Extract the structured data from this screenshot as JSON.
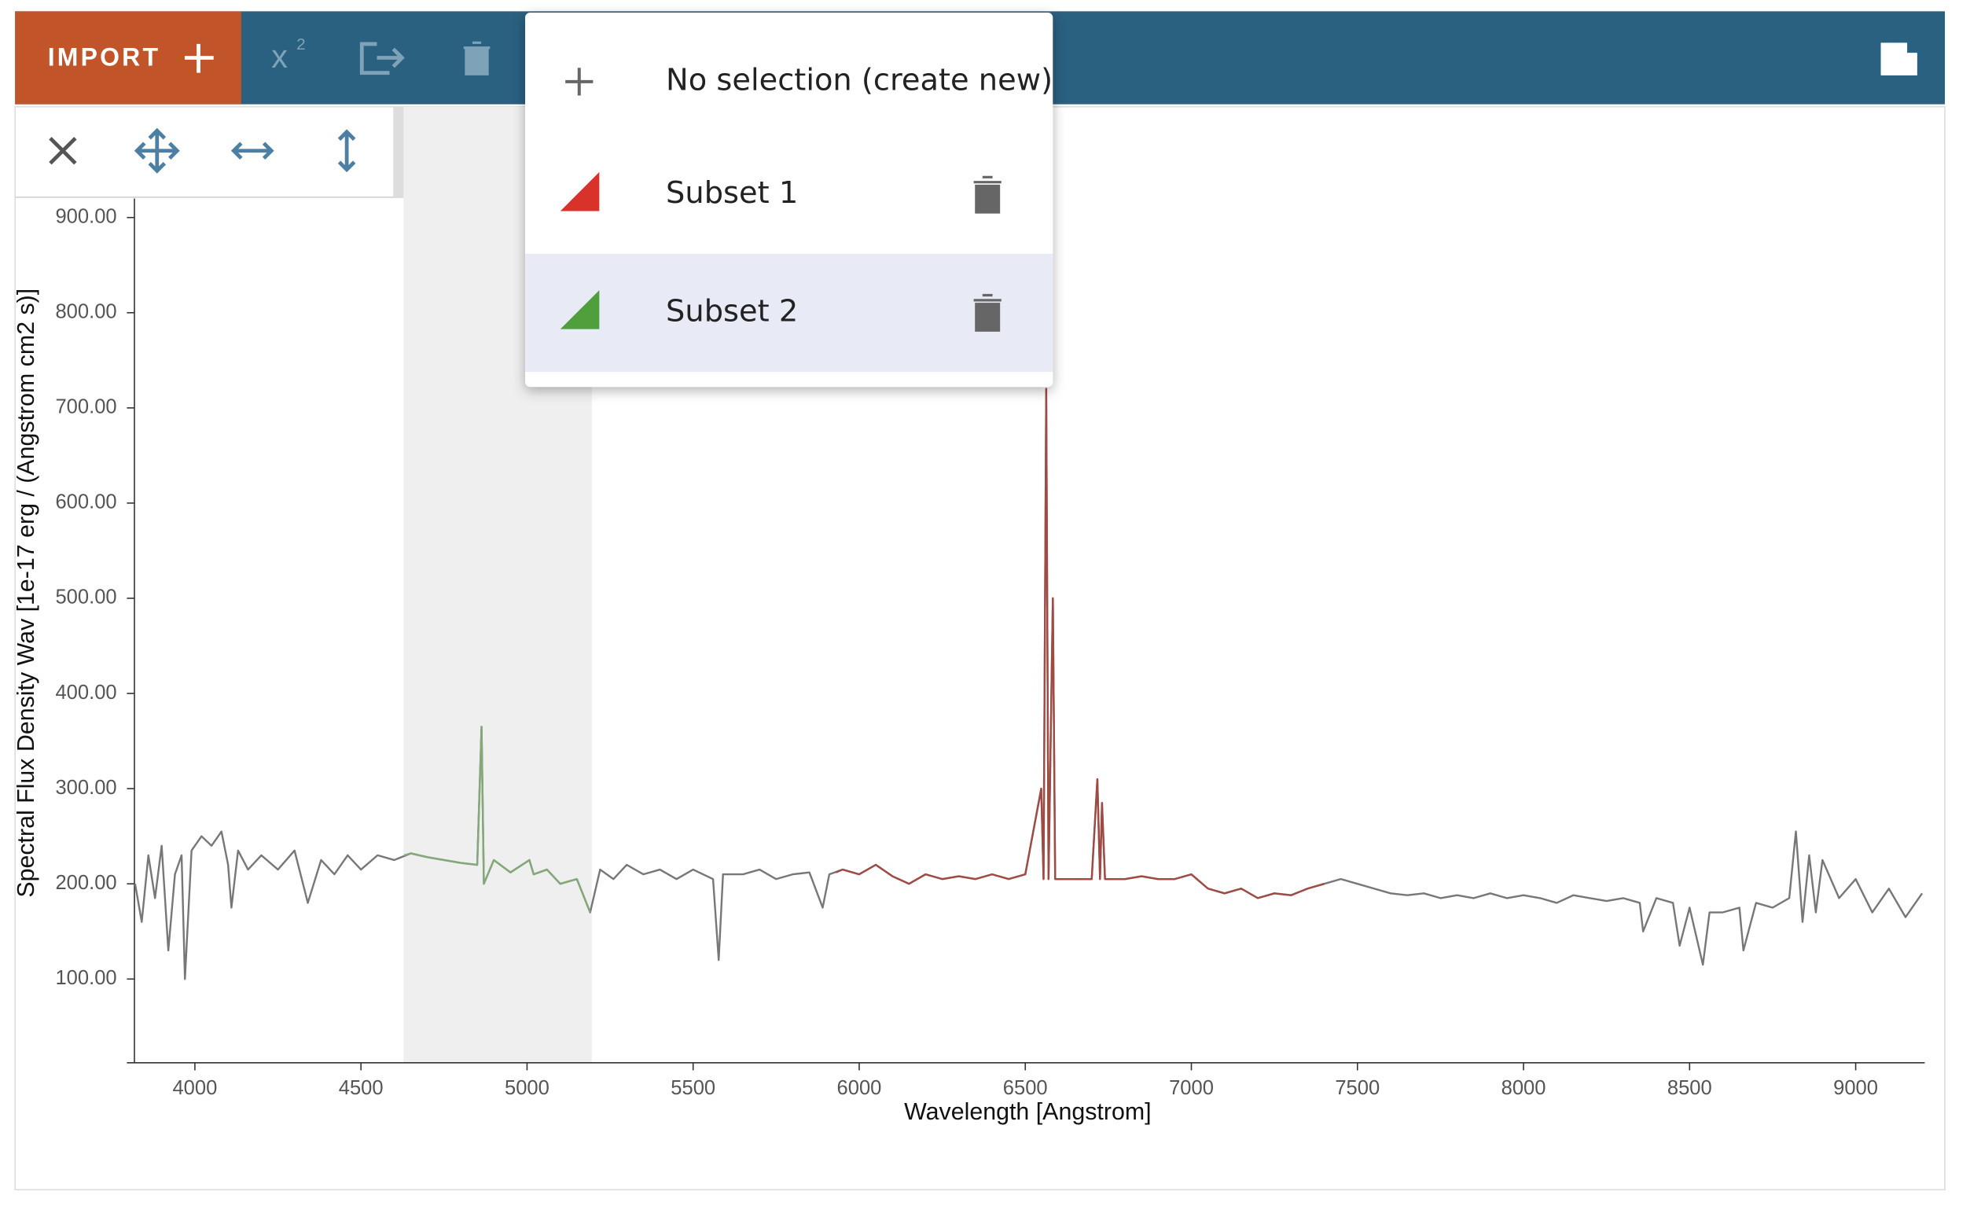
{
  "toolbar": {
    "import_label": "IMPORT",
    "fit_icon_label": "x",
    "fit_icon_exponent": "2"
  },
  "subset_menu": {
    "items": [
      {
        "label": "No selection (create new)"
      },
      {
        "label": "Subset 1",
        "color": "#d9322b"
      },
      {
        "label": "Subset 2",
        "color": "#4f9f3d",
        "selected": true
      }
    ]
  },
  "chart_data": {
    "type": "line",
    "x_label": "Wavelength [Angstrom]",
    "y_label": "Spectral Flux Density Wav [1e-17 erg / (Angstrom cm2 s)]",
    "xlim": [
      3818,
      9208
    ],
    "ylim": [
      12,
      920
    ],
    "xticks": [
      4000,
      4500,
      5000,
      5500,
      6000,
      6500,
      7000,
      7500,
      8000,
      8500,
      9000
    ],
    "yticks": [
      {
        "value": 100,
        "label": "100.00"
      },
      {
        "value": 200,
        "label": "200.00"
      },
      {
        "value": 300,
        "label": "300.00"
      },
      {
        "value": 400,
        "label": "400.00"
      },
      {
        "value": 500,
        "label": "500.00"
      },
      {
        "value": 600,
        "label": "600.00"
      },
      {
        "value": 700,
        "label": "700.00"
      },
      {
        "value": 800,
        "label": "800.00"
      },
      {
        "value": 900,
        "label": "900.00"
      }
    ],
    "spectral_region": [
      4628,
      5195
    ],
    "series": [
      {
        "color": "#777777",
        "x": [
          3820,
          3840,
          3860,
          3880,
          3900,
          3920,
          3940,
          3960,
          3970,
          3990,
          4020,
          4050,
          4080,
          4100,
          4110,
          4130,
          4160,
          4200,
          4250,
          4300,
          4340,
          4380,
          4420,
          4460,
          4500,
          4550,
          4600,
          4650,
          4700,
          4750,
          4800,
          4850,
          4863,
          4870,
          4900,
          4950,
          5007,
          5020,
          5060,
          5100,
          5150,
          5190,
          5220,
          5260,
          5300,
          5350,
          5400,
          5450,
          5500,
          5560,
          5577,
          5590,
          5650,
          5700,
          5750,
          5800,
          5850,
          5890,
          5910,
          5950,
          6000,
          6050,
          6100,
          6150,
          6200,
          6250,
          6300,
          6350,
          6400,
          6450,
          6500,
          6548,
          6555,
          6563,
          6570,
          6583,
          6590,
          6650,
          6700,
          6717,
          6725,
          6731,
          6740,
          6800,
          6850,
          6900,
          6950,
          7000,
          7050,
          7100,
          7150,
          7200,
          7250,
          7300,
          7350,
          7400,
          7450,
          7500,
          7550,
          7600,
          7650,
          7700,
          7750,
          7800,
          7850,
          7900,
          7950,
          8000,
          8050,
          8100,
          8150,
          8200,
          8250,
          8300,
          8350,
          8360,
          8400,
          8450,
          8470,
          8500,
          8540,
          8560,
          8600,
          8650,
          8662,
          8700,
          8750,
          8800,
          8820,
          8840,
          8860,
          8880,
          8900,
          8950,
          9000,
          9050,
          9100,
          9150,
          9200
        ],
        "values": [
          200,
          160,
          230,
          185,
          240,
          130,
          210,
          230,
          100,
          235,
          250,
          240,
          255,
          220,
          175,
          235,
          215,
          230,
          215,
          235,
          180,
          225,
          210,
          230,
          215,
          230,
          225,
          232,
          228,
          225,
          222,
          220,
          365,
          200,
          225,
          212,
          225,
          210,
          215,
          200,
          205,
          170,
          215,
          205,
          220,
          210,
          215,
          205,
          215,
          205,
          120,
          210,
          210,
          215,
          205,
          210,
          212,
          175,
          210,
          215,
          210,
          220,
          208,
          200,
          210,
          205,
          208,
          205,
          210,
          205,
          210,
          300,
          205,
          720,
          205,
          500,
          205,
          205,
          205,
          310,
          205,
          285,
          205,
          205,
          208,
          205,
          205,
          210,
          195,
          190,
          195,
          185,
          190,
          188,
          195,
          200,
          205,
          200,
          195,
          190,
          188,
          190,
          185,
          188,
          185,
          190,
          185,
          188,
          185,
          180,
          188,
          185,
          182,
          185,
          180,
          150,
          185,
          180,
          135,
          175,
          115,
          170,
          170,
          175,
          130,
          180,
          175,
          185,
          255,
          160,
          230,
          170,
          225,
          185,
          205,
          170,
          195,
          165,
          190
        ]
      },
      {
        "color": "#84a878",
        "x": [
          4630,
          4650,
          4700,
          4750,
          4800,
          4850,
          4863,
          4870,
          4900,
          4950,
          5007,
          5020,
          5060,
          5100,
          5150,
          5190
        ],
        "values": [
          230,
          232,
          228,
          225,
          222,
          220,
          365,
          200,
          225,
          212,
          225,
          210,
          215,
          200,
          205,
          170
        ]
      },
      {
        "color": "#a04a44",
        "x": [
          5930,
          5950,
          6000,
          6050,
          6100,
          6150,
          6200,
          6250,
          6300,
          6350,
          6400,
          6450,
          6500,
          6548,
          6555,
          6563,
          6570,
          6583,
          6590,
          6650,
          6700,
          6717,
          6725,
          6731,
          6740,
          6800,
          6850,
          6900,
          6950,
          7000,
          7050,
          7100,
          7150,
          7200,
          7250,
          7300,
          7350,
          7400
        ],
        "values": [
          212,
          215,
          210,
          220,
          208,
          200,
          210,
          205,
          208,
          205,
          210,
          205,
          210,
          300,
          205,
          720,
          205,
          500,
          205,
          205,
          205,
          310,
          205,
          285,
          205,
          205,
          208,
          205,
          205,
          210,
          195,
          190,
          195,
          185,
          190,
          188,
          195,
          200
        ]
      }
    ]
  }
}
